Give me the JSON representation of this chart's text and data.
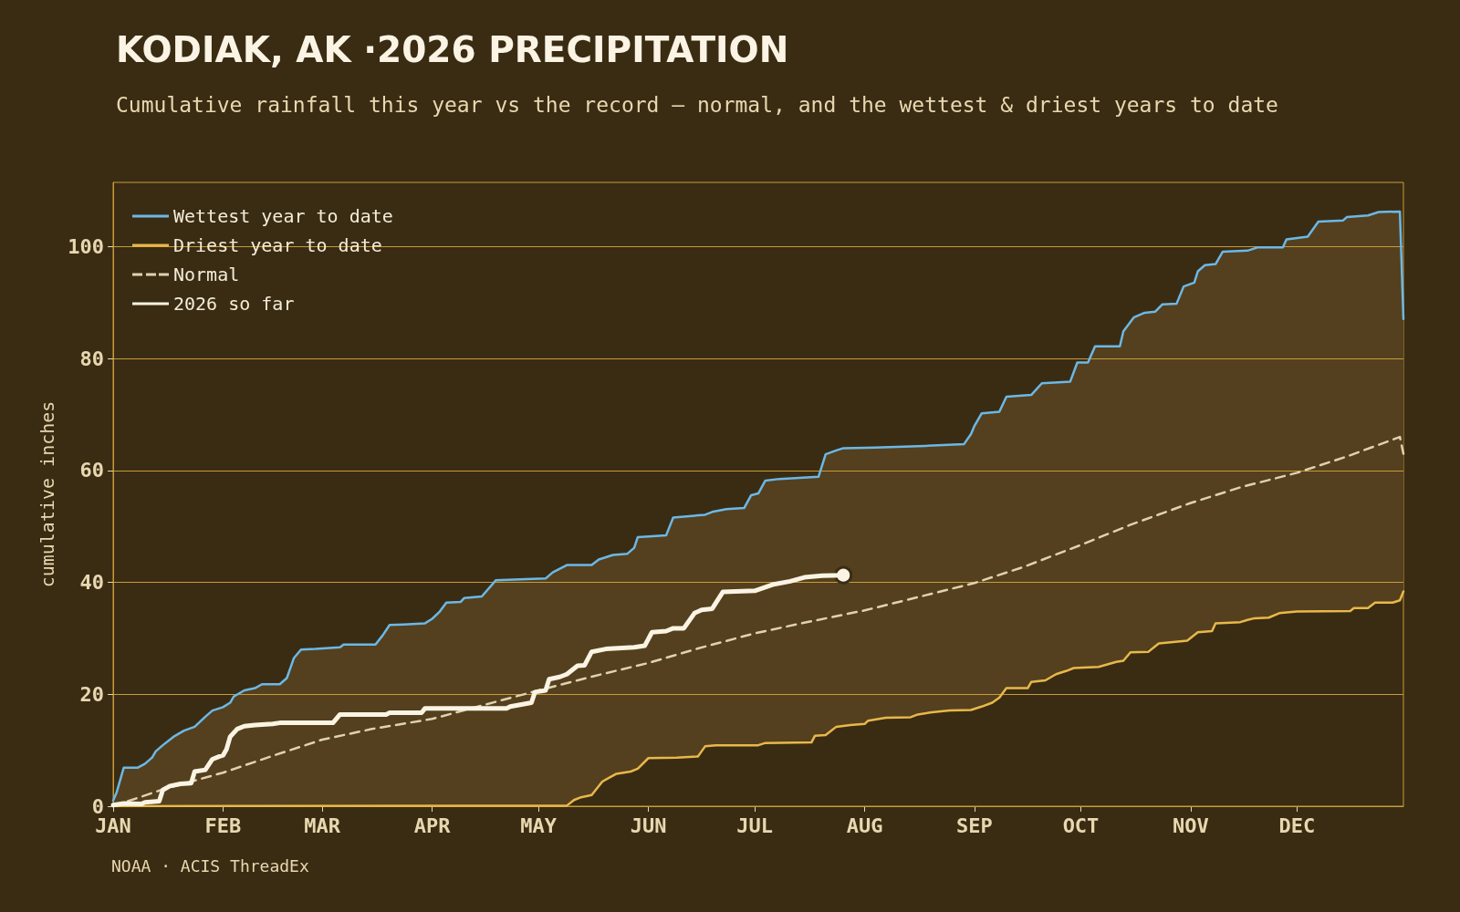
{
  "chart_data": {
    "type": "line",
    "title": "KODIAK, AK ·2026 PRECIPITATION",
    "subtitle": "Cumulative rainfall this year vs the record — normal, and the wettest & driest years to date",
    "ylabel": "cumulative inches",
    "annotations": [
      "NOAA · ACIS ThreadEx"
    ],
    "xlim": [
      "--01-01",
      "--12-31"
    ],
    "xticks": [
      {
        "value": "--01-01",
        "label": "JAN"
      },
      {
        "value": "--02-01",
        "label": "FEB"
      },
      {
        "value": "--03-01",
        "label": "MAR"
      },
      {
        "value": "--04-01",
        "label": "APR"
      },
      {
        "value": "--05-01",
        "label": "MAY"
      },
      {
        "value": "--06-01",
        "label": "JUN"
      },
      {
        "value": "--07-01",
        "label": "JUL"
      },
      {
        "value": "--08-01",
        "label": "AUG"
      },
      {
        "value": "--09-01",
        "label": "SEP"
      },
      {
        "value": "--10-01",
        "label": "OCT"
      },
      {
        "value": "--11-01",
        "label": "NOV"
      },
      {
        "value": "--12-01",
        "label": "DEC"
      }
    ],
    "ylim": [
      0,
      111.5
    ],
    "yticks": [
      0,
      20,
      40,
      60,
      80,
      100
    ],
    "grid": "y",
    "legend": "top left",
    "series": [
      {
        "color": "#54401e",
        "values": [
          null,
          null,
          null,
          null,
          null,
          null,
          null,
          null,
          null,
          null,
          null,
          null,
          null,
          null,
          null,
          null,
          null,
          null,
          null,
          null,
          null,
          null,
          null,
          null,
          null,
          null,
          null,
          null,
          null,
          null,
          null,
          null,
          null,
          null,
          null,
          null,
          null,
          null,
          null,
          null,
          null,
          null,
          null,
          null,
          null,
          null,
          null,
          null,
          null,
          null,
          null,
          null,
          null,
          null,
          null,
          null,
          null,
          null,
          null,
          null,
          null,
          null,
          null,
          null,
          null,
          null,
          null,
          null,
          null,
          null,
          null,
          null,
          null,
          null,
          null,
          null,
          null,
          null,
          null,
          null,
          null,
          null,
          null,
          null,
          null,
          null,
          null,
          null,
          null,
          null,
          null,
          null,
          null,
          null,
          null,
          null,
          null,
          null,
          null,
          null,
          null,
          null,
          null,
          null,
          null,
          null,
          null,
          null,
          null,
          null,
          null,
          null,
          null,
          null,
          null,
          null,
          null,
          null,
          null,
          null,
          null,
          null,
          null,
          null,
          null,
          null,
          null,
          null,
          null,
          null,
          null,
          null,
          null,
          null,
          null,
          null,
          null,
          null,
          null,
          null,
          null,
          null,
          null
        ],
        "x": [
          "--01-01",
          "--01-02",
          "--01-04",
          "--01-08",
          "--01-10",
          "--01-12",
          "--01-13",
          "--01-15",
          "--01-18",
          "--01-21",
          "--01-24",
          "--01-27",
          "--01-29",
          "--02-01",
          "--02-03",
          "--02-04",
          "--02-07",
          "--02-10",
          "--02-12",
          "--02-17",
          "--02-19",
          "--02-21",
          "--02-23",
          "--02-27",
          "--03-06",
          "--03-07",
          "--03-16",
          "--03-18",
          "--03-20",
          "--03-24",
          "--03-30",
          "--04-01",
          "--04-03",
          "--04-05",
          "--04-09",
          "--04-10",
          "--04-15",
          "--04-19",
          "--04-24",
          "--05-03",
          "--05-05",
          "--05-09",
          "--05-11",
          "--05-13",
          "--05-16",
          "--05-18",
          "--05-19",
          "--05-21",
          "--05-22",
          "--05-23",
          "--05-26",
          "--05-27",
          "--05-28",
          "--05-29",
          "--06-01",
          "--06-06",
          "--06-08",
          "--06-09",
          "--06-15",
          "--06-17",
          "--06-19",
          "--06-20",
          "--06-23",
          "--06-28",
          "--06-30",
          "--07-02",
          "--07-04",
          "--07-08",
          "--07-17",
          "--07-18",
          "--07-19",
          "--07-21",
          "--07-24",
          "--07-26",
          "--07-28",
          "--08-01",
          "--08-02",
          "--08-04",
          "--08-07",
          "--08-14",
          "--08-16",
          "--08-18",
          "--08-20",
          "--08-25",
          "--08-29",
          "--08-31",
          "--09-01",
          "--09-03",
          "--09-06",
          "--09-08",
          "--09-10",
          "--09-16",
          "--09-17",
          "--09-20",
          "--09-21",
          "--09-24",
          "--09-27",
          "--09-28",
          "--09-29",
          "--09-30",
          "--10-03",
          "--10-05",
          "--10-06",
          "--10-11",
          "--10-12",
          "--10-13",
          "--10-15",
          "--10-16",
          "--10-19",
          "--10-20",
          "--10-22",
          "--10-23",
          "--10-24",
          "--10-28",
          "--10-30",
          "--10-31",
          "--11-02",
          "--11-03",
          "--11-05",
          "--11-07",
          "--11-08",
          "--11-10",
          "--11-15",
          "--11-17",
          "--11-19",
          "--11-20",
          "--11-23",
          "--11-26",
          "--11-27",
          "--11-28",
          "--12-01",
          "--12-04",
          "--12-07",
          "--12-14",
          "--12-15",
          "--12-16",
          "--12-17",
          "--12-21",
          "--12-23",
          "--12-24",
          "--12-28",
          "--12-30",
          "--12-31"
        ],
        "lower": [
          0,
          0,
          0,
          0,
          0,
          0,
          0,
          0,
          0,
          0,
          0,
          0,
          0,
          0,
          0,
          0,
          0,
          0,
          0,
          0,
          0,
          0,
          0,
          0,
          0,
          0,
          0,
          0,
          0,
          0,
          0,
          0,
          0,
          0,
          0,
          0,
          0,
          0,
          0,
          0,
          0,
          0.1,
          1.1,
          1.6,
          2.0,
          3.6,
          4.4,
          5.1,
          5.5,
          5.8,
          6.1,
          6.2,
          6.5,
          6.7,
          8.6,
          8.7,
          8.7,
          8.7,
          8.9,
          10.7,
          10.8,
          10.9,
          10.9,
          10.9,
          10.9,
          10.9,
          11.3,
          11.3,
          11.4,
          12.6,
          12.6,
          12.7,
          14.2,
          14.4,
          14.5,
          14.7,
          15.3,
          15.5,
          15.8,
          15.9,
          16.4,
          16.6,
          16.8,
          17.1,
          17.2,
          17.2,
          17.4,
          17.8,
          18.5,
          19.4,
          21.1,
          21.1,
          22.2,
          22.4,
          22.5,
          23.6,
          24.2,
          24.5,
          24.7,
          24.7,
          24.8,
          24.9,
          25.1,
          25.8,
          25.9,
          26.0,
          27.5,
          27.5,
          27.6,
          28.1,
          28.6,
          29.1,
          29.2,
          29.4,
          29.5,
          29.6,
          30.6,
          31.1,
          31.2,
          31.3,
          32.7,
          32.8,
          32.9,
          33.3,
          33.6,
          33.6,
          33.7,
          34.5,
          34.6,
          34.6,
          34.8,
          34.8,
          34.8,
          34.9,
          34.9,
          34.9,
          35.4,
          35.4,
          36.4,
          36.4,
          36.4,
          36.8,
          38.4
        ],
        "upper": [
          1.0,
          2.5,
          6.9,
          6.9,
          7.6,
          8.7,
          9.8,
          10.9,
          12.4,
          13.5,
          14.2,
          16.0,
          17.1,
          17.7,
          18.5,
          19.6,
          20.7,
          21.1,
          21.8,
          21.8,
          22.9,
          26.5,
          28.0,
          28.1,
          28.4,
          28.9,
          28.9,
          30.5,
          32.4,
          32.5,
          32.7,
          33.5,
          34.7,
          36.4,
          36.5,
          37.2,
          37.5,
          40.4,
          40.5,
          40.7,
          41.8,
          43.1,
          43.1,
          43.1,
          43.1,
          44.1,
          44.3,
          44.7,
          44.9,
          45.0,
          45.1,
          45.7,
          46.2,
          48.1,
          48.2,
          48.4,
          51.6,
          51.7,
          52.0,
          52.1,
          52.6,
          52.7,
          53.1,
          53.3,
          55.6,
          55.9,
          58.2,
          58.5,
          58.8,
          58.9,
          58.9,
          62.9,
          63.6,
          64.0,
          64.0,
          64.1,
          64.1,
          64.1,
          64.2,
          64.3,
          64.4,
          64.4,
          64.5,
          64.6,
          64.7,
          66.5,
          68.0,
          70.2,
          70.4,
          70.5,
          73.2,
          73.5,
          73.5,
          75.6,
          75.6,
          75.7,
          75.9,
          75.9,
          77.6,
          79.3,
          79.3,
          82.2,
          82.2,
          82.2,
          82.2,
          84.9,
          86.6,
          87.4,
          88.2,
          88.3,
          88.4,
          89.1,
          89.7,
          89.8,
          92.9,
          93.1,
          93.6,
          95.6,
          96.7,
          96.8,
          96.9,
          99.1,
          99.2,
          99.3,
          99.7,
          99.9,
          99.9,
          99.9,
          99.9,
          101.3,
          101.6,
          101.8,
          104.5,
          104.7,
          105.3,
          105.4,
          105.4,
          105.6,
          106.0,
          106.2,
          106.3,
          106.3,
          87.1
        ]
      },
      {
        "name": "Wettest year to date",
        "color": "#6cb8e6",
        "x": [
          "--01-01",
          "--01-02",
          "--01-04",
          "--01-08",
          "--01-10",
          "--01-12",
          "--01-13",
          "--01-15",
          "--01-18",
          "--01-21",
          "--01-24",
          "--01-27",
          "--01-29",
          "--02-01",
          "--02-03",
          "--02-04",
          "--02-07",
          "--02-10",
          "--02-12",
          "--02-17",
          "--02-19",
          "--02-21",
          "--02-23",
          "--02-27",
          "--03-06",
          "--03-07",
          "--03-16",
          "--03-18",
          "--03-20",
          "--03-24",
          "--03-30",
          "--04-01",
          "--04-03",
          "--04-05",
          "--04-09",
          "--04-10",
          "--04-15",
          "--04-19",
          "--04-24",
          "--05-03",
          "--05-05",
          "--05-09",
          "--05-16",
          "--05-18",
          "--05-22",
          "--05-26",
          "--05-28",
          "--05-29",
          "--06-06",
          "--06-08",
          "--06-17",
          "--06-19",
          "--06-23",
          "--06-28",
          "--06-30",
          "--07-02",
          "--07-04",
          "--07-08",
          "--07-19",
          "--07-21",
          "--07-24",
          "--07-26",
          "--08-04",
          "--08-18",
          "--08-29",
          "--08-31",
          "--09-01",
          "--09-03",
          "--09-08",
          "--09-10",
          "--09-17",
          "--09-20",
          "--09-28",
          "--09-30",
          "--10-03",
          "--10-05",
          "--10-12",
          "--10-13",
          "--10-16",
          "--10-19",
          "--10-22",
          "--10-24",
          "--10-28",
          "--10-30",
          "--11-02",
          "--11-03",
          "--11-05",
          "--11-08",
          "--11-10",
          "--11-17",
          "--11-20",
          "--11-27",
          "--11-28",
          "--12-04",
          "--12-07",
          "--12-14",
          "--12-15",
          "--12-21",
          "--12-24",
          "--12-30",
          "--12-31"
        ],
        "values": [
          1.0,
          2.5,
          6.9,
          6.9,
          7.6,
          8.7,
          9.8,
          10.9,
          12.4,
          13.5,
          14.2,
          16.0,
          17.1,
          17.7,
          18.5,
          19.6,
          20.7,
          21.1,
          21.8,
          21.8,
          22.9,
          26.5,
          28.0,
          28.1,
          28.4,
          28.9,
          28.9,
          30.5,
          32.4,
          32.5,
          32.7,
          33.5,
          34.7,
          36.4,
          36.5,
          37.2,
          37.5,
          40.4,
          40.5,
          40.7,
          41.8,
          43.1,
          43.1,
          44.1,
          44.9,
          45.1,
          46.2,
          48.1,
          48.4,
          51.6,
          52.1,
          52.6,
          53.1,
          53.3,
          55.6,
          55.9,
          58.2,
          58.5,
          58.9,
          62.9,
          63.6,
          64.0,
          64.1,
          64.4,
          64.7,
          66.5,
          68.0,
          70.2,
          70.5,
          73.2,
          73.5,
          75.6,
          75.9,
          79.3,
          79.3,
          82.2,
          82.2,
          84.9,
          87.4,
          88.2,
          88.4,
          89.7,
          89.8,
          92.9,
          93.6,
          95.6,
          96.7,
          96.9,
          99.1,
          99.3,
          99.9,
          99.9,
          101.3,
          101.8,
          104.5,
          104.7,
          105.3,
          105.6,
          106.2,
          106.3,
          87.1
        ]
      },
      {
        "name": "Driest year to date",
        "color": "#e8b84a",
        "x": [
          "--01-01",
          "--05-09",
          "--05-11",
          "--05-13",
          "--05-16",
          "--05-19",
          "--05-21",
          "--05-23",
          "--05-27",
          "--05-29",
          "--06-01",
          "--06-09",
          "--06-15",
          "--06-17",
          "--06-20",
          "--07-02",
          "--07-04",
          "--07-17",
          "--07-18",
          "--07-21",
          "--07-24",
          "--07-28",
          "--08-01",
          "--08-02",
          "--08-07",
          "--08-14",
          "--08-16",
          "--08-20",
          "--08-25",
          "--08-31",
          "--09-03",
          "--09-06",
          "--09-08",
          "--09-10",
          "--09-16",
          "--09-17",
          "--09-21",
          "--09-24",
          "--09-27",
          "--09-29",
          "--10-06",
          "--10-11",
          "--10-13",
          "--10-15",
          "--10-20",
          "--10-23",
          "--10-31",
          "--11-03",
          "--11-07",
          "--11-08",
          "--11-15",
          "--11-17",
          "--11-19",
          "--11-23",
          "--11-26",
          "--12-01",
          "--12-16",
          "--12-17",
          "--12-21",
          "--12-23",
          "--12-28",
          "--12-30",
          "--12-31"
        ],
        "values": [
          0,
          0.1,
          1.1,
          1.6,
          2.0,
          4.4,
          5.1,
          5.8,
          6.2,
          6.7,
          8.6,
          8.7,
          8.9,
          10.7,
          10.9,
          10.9,
          11.3,
          11.4,
          12.6,
          12.7,
          14.2,
          14.5,
          14.7,
          15.3,
          15.8,
          15.9,
          16.4,
          16.8,
          17.1,
          17.2,
          17.8,
          18.5,
          19.4,
          21.1,
          21.1,
          22.2,
          22.5,
          23.6,
          24.2,
          24.7,
          24.9,
          25.8,
          26.0,
          27.5,
          27.6,
          29.1,
          29.6,
          31.1,
          31.3,
          32.7,
          32.9,
          33.3,
          33.6,
          33.7,
          34.5,
          34.8,
          34.9,
          35.4,
          35.4,
          36.4,
          36.4,
          36.8,
          38.4
        ]
      },
      {
        "name": "Normal",
        "color": "#e0d2b0",
        "line_style": "dashed",
        "x": [
          "--01-01",
          "--01-15",
          "--02-01",
          "--02-15",
          "--03-01",
          "--03-15",
          "--04-01",
          "--04-15",
          "--05-01",
          "--05-15",
          "--06-01",
          "--06-15",
          "--07-01",
          "--07-15",
          "--08-01",
          "--08-15",
          "--09-01",
          "--09-15",
          "--10-01",
          "--10-15",
          "--11-01",
          "--11-15",
          "--12-01",
          "--12-15",
          "--12-30",
          "--12-31"
        ],
        "values": [
          0,
          3.0,
          6.0,
          9.0,
          11.9,
          13.8,
          15.6,
          18.0,
          20.7,
          23.0,
          25.6,
          28.2,
          30.9,
          32.8,
          35.0,
          37.2,
          39.9,
          42.8,
          46.7,
          50.3,
          54.2,
          57.0,
          59.6,
          62.5,
          66.0,
          63.0
        ]
      },
      {
        "name": "2026 so far",
        "color": "#fbf4e4",
        "x": [
          "--01-01",
          "--01-04",
          "--01-09",
          "--01-10",
          "--01-14",
          "--01-15",
          "--01-17",
          "--01-20",
          "--01-23",
          "--01-24",
          "--01-27",
          "--01-29",
          "--01-31",
          "--02-01",
          "--02-02",
          "--02-03",
          "--02-05",
          "--02-07",
          "--02-10",
          "--02-15",
          "--02-17",
          "--03-04",
          "--03-06",
          "--03-19",
          "--03-20",
          "--03-29",
          "--03-30",
          "--04-22",
          "--04-23",
          "--04-29",
          "--04-30",
          "--05-03",
          "--05-04",
          "--05-07",
          "--05-09",
          "--05-12",
          "--05-14",
          "--05-16",
          "--05-20",
          "--05-28",
          "--05-31",
          "--06-02",
          "--06-06",
          "--06-08",
          "--06-11",
          "--06-14",
          "--06-16",
          "--06-19",
          "--06-22",
          "--07-01",
          "--07-06",
          "--07-11",
          "--07-15",
          "--07-20",
          "--07-26"
        ],
        "values": [
          0.2,
          0.5,
          0.4,
          0.7,
          0.9,
          2.9,
          3.6,
          4.0,
          4.1,
          6.2,
          6.5,
          8.4,
          8.9,
          9.1,
          10.2,
          12.4,
          13.8,
          14.3,
          14.5,
          14.7,
          14.9,
          14.9,
          16.4,
          16.4,
          16.7,
          16.7,
          17.5,
          17.5,
          17.8,
          18.5,
          20.4,
          20.7,
          22.7,
          23.1,
          23.6,
          25.1,
          25.2,
          27.6,
          28.1,
          28.4,
          28.7,
          31.1,
          31.3,
          31.8,
          31.8,
          34.5,
          35.1,
          35.3,
          38.3,
          38.5,
          39.6,
          40.2,
          40.9,
          41.2,
          41.3
        ]
      }
    ]
  }
}
